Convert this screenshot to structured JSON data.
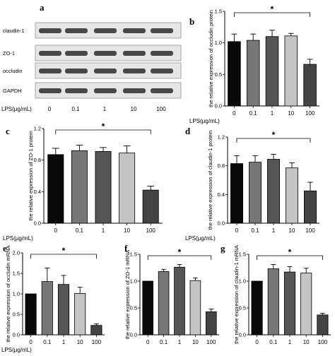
{
  "blot": {
    "letter": "a",
    "bands": [
      "claudin-1",
      "ZO-1",
      "occludin",
      "GAPDH"
    ],
    "x_prefix": "LPS(μg/mL)",
    "lanes": [
      "0",
      "0.1",
      "1",
      "10",
      "100"
    ]
  },
  "colors": {
    "bars": [
      "#0a0a0a",
      "#777777",
      "#555555",
      "#c4c4c4",
      "#444444"
    ]
  },
  "chart_data": [
    {
      "id": "b",
      "type": "bar",
      "letter": "b",
      "ylabel": "the relative expression of occludin protein",
      "x_prefix": "LPS(μg/mL)",
      "categories": [
        "0",
        "0.1",
        "1",
        "10",
        "100"
      ],
      "values": [
        1.02,
        1.04,
        1.1,
        1.11,
        0.66
      ],
      "errors": [
        0.12,
        0.1,
        0.1,
        0.04,
        0.08
      ],
      "ylim": [
        0,
        1.5
      ],
      "yticks": [
        "0.0",
        "0.5",
        "1.0",
        "1.5"
      ],
      "significance": {
        "from": 0,
        "to": 4,
        "label": "*"
      }
    },
    {
      "id": "c",
      "type": "bar",
      "letter": "c",
      "ylabel": "the relative expression of ZO-1 protein",
      "x_prefix": "LPS(μg/mL)",
      "categories": [
        "0",
        "0.1",
        "1",
        "10",
        "100"
      ],
      "values": [
        0.87,
        0.92,
        0.91,
        0.89,
        0.42
      ],
      "errors": [
        0.08,
        0.07,
        0.05,
        0.09,
        0.05
      ],
      "ylim": [
        0,
        1.2
      ],
      "yticks": [
        "0.0",
        "0.4",
        "0.8",
        "1.2"
      ],
      "significance": {
        "from": 0,
        "to": 4,
        "label": "*"
      }
    },
    {
      "id": "d",
      "type": "bar",
      "letter": "d",
      "ylabel": "the relative expression of claudin-1 protein",
      "x_prefix": "LPS(μg/mL)",
      "categories": [
        "0",
        "0.1",
        "1",
        "10",
        "100"
      ],
      "values": [
        0.83,
        0.85,
        0.89,
        0.77,
        0.45
      ],
      "errors": [
        0.11,
        0.09,
        0.07,
        0.07,
        0.12
      ],
      "ylim": [
        0,
        1.2
      ],
      "yticks": [
        "0.0",
        "0.4",
        "0.8",
        "1.2"
      ],
      "significance": {
        "from": 0,
        "to": 4,
        "label": "*"
      }
    },
    {
      "id": "e",
      "type": "bar",
      "letter": "e",
      "ylabel": "the relative expression of occludin mRNA",
      "x_prefix": "LPS(μg/mL)",
      "categories": [
        "0",
        "0.1",
        "1",
        "10",
        "100"
      ],
      "values": [
        1.0,
        1.3,
        1.23,
        1.01,
        0.23
      ],
      "errors": [
        0.0,
        0.33,
        0.22,
        0.15,
        0.04
      ],
      "ylim": [
        0,
        2.0
      ],
      "yticks": [
        "0.0",
        "0.5",
        "1.0",
        "1.5",
        "2.0"
      ],
      "significance": {
        "from": 0,
        "to": 4,
        "label": "*"
      }
    },
    {
      "id": "f",
      "type": "bar",
      "letter": "f",
      "ylabel": "the relative expression of ZO-1 mRNA",
      "x_prefix": "",
      "categories": [
        "0",
        "0.1",
        "1",
        "10",
        "100"
      ],
      "values": [
        1.0,
        1.18,
        1.26,
        1.01,
        0.43
      ],
      "errors": [
        0.0,
        0.04,
        0.05,
        0.05,
        0.05
      ],
      "ylim": [
        0,
        1.5
      ],
      "yticks": [
        "0.0",
        "0.5",
        "1.0",
        "1.5"
      ],
      "significance": {
        "from": 0,
        "to": 4,
        "label": "*"
      }
    },
    {
      "id": "g",
      "type": "bar",
      "letter": "g",
      "ylabel": "the relative expression of claudin-1 mRNA",
      "x_prefix": "",
      "categories": [
        "0",
        "0.1",
        "1",
        "10",
        "100"
      ],
      "values": [
        1.0,
        1.23,
        1.17,
        1.15,
        0.37
      ],
      "errors": [
        0.0,
        0.08,
        0.1,
        0.09,
        0.03
      ],
      "ylim": [
        0,
        1.5
      ],
      "yticks": [
        "0.0",
        "0.5",
        "1.0",
        "1.5"
      ],
      "significance": {
        "from": 0,
        "to": 4,
        "label": "*"
      }
    }
  ]
}
